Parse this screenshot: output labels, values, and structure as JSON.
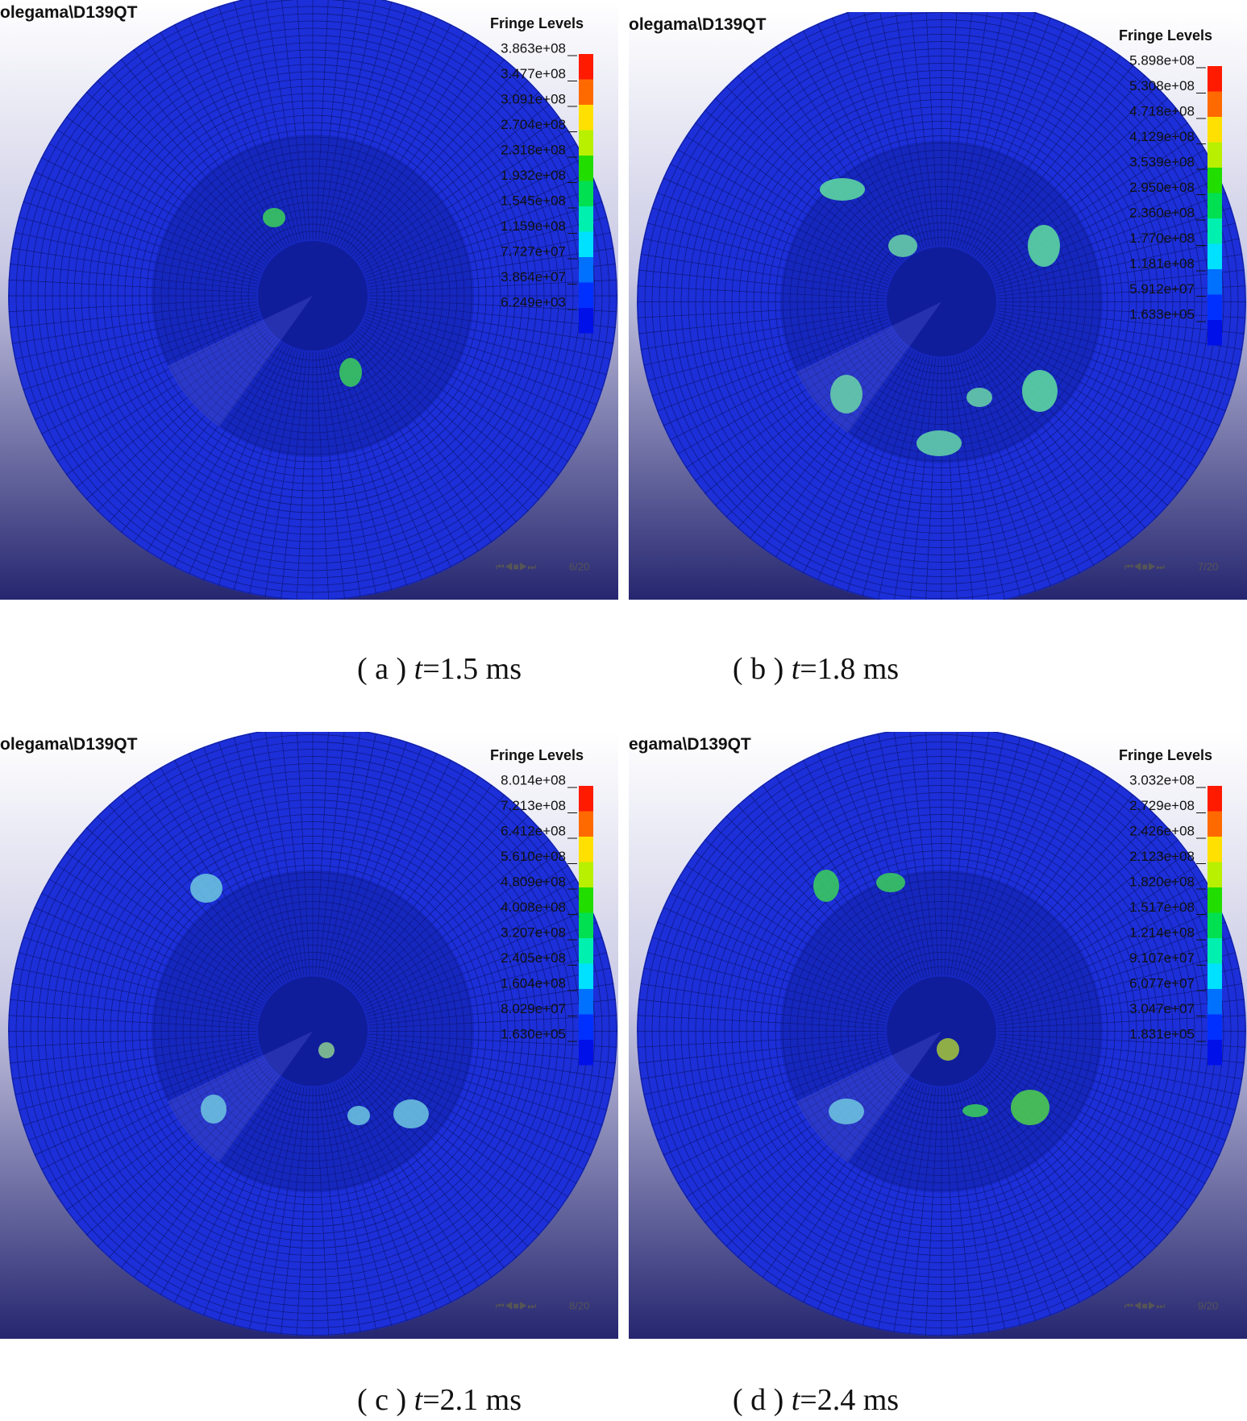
{
  "panels": [
    {
      "title": "olegama\\D139QT",
      "legend_title": "Fringe Levels",
      "levels": [
        "3.863e+08",
        "3.477e+08",
        "3.091e+08",
        "2.704e+08",
        "2.318e+08",
        "1.932e+08",
        "1.545e+08",
        "1.159e+08",
        "7.727e+07",
        "3.864e+07",
        "6.249e+03"
      ],
      "frame": "6/20",
      "caption": {
        "label": "( a )",
        "variable": "t",
        "value": "=1.5 ms"
      }
    },
    {
      "title": "olegama\\D139QT",
      "legend_title": "Fringe Levels",
      "levels": [
        "5.898e+08",
        "5.308e+08",
        "4.718e+08",
        "4.129e+08",
        "3.539e+08",
        "2.950e+08",
        "2.360e+08",
        "1.770e+08",
        "1.181e+08",
        "5.912e+07",
        "1.633e+05"
      ],
      "frame": "7/20",
      "caption": {
        "label": "( b )",
        "variable": "t",
        "value": "=1.8 ms"
      }
    },
    {
      "title": "olegama\\D139QT",
      "legend_title": "Fringe Levels",
      "levels": [
        "8.014e+08",
        "7.213e+08",
        "6.412e+08",
        "5.610e+08",
        "4.809e+08",
        "4.008e+08",
        "3.207e+08",
        "2.405e+08",
        "1.604e+08",
        "8.029e+07",
        "1.630e+05"
      ],
      "frame": "8/20",
      "caption": {
        "label": "( c )",
        "variable": "t",
        "value": "=2.1 ms"
      }
    },
    {
      "title": "egama\\D139QT",
      "legend_title": "Fringe Levels",
      "levels": [
        "3.032e+08",
        "2.729e+08",
        "2.426e+08",
        "2.123e+08",
        "1.820e+08",
        "1.517e+08",
        "1.214e+08",
        "9.107e+07",
        "6.077e+07",
        "3.047e+07",
        "1.831e+05"
      ],
      "frame": "9/20",
      "caption": {
        "label": "( d )",
        "variable": "t",
        "value": "=2.4 ms"
      }
    }
  ]
}
